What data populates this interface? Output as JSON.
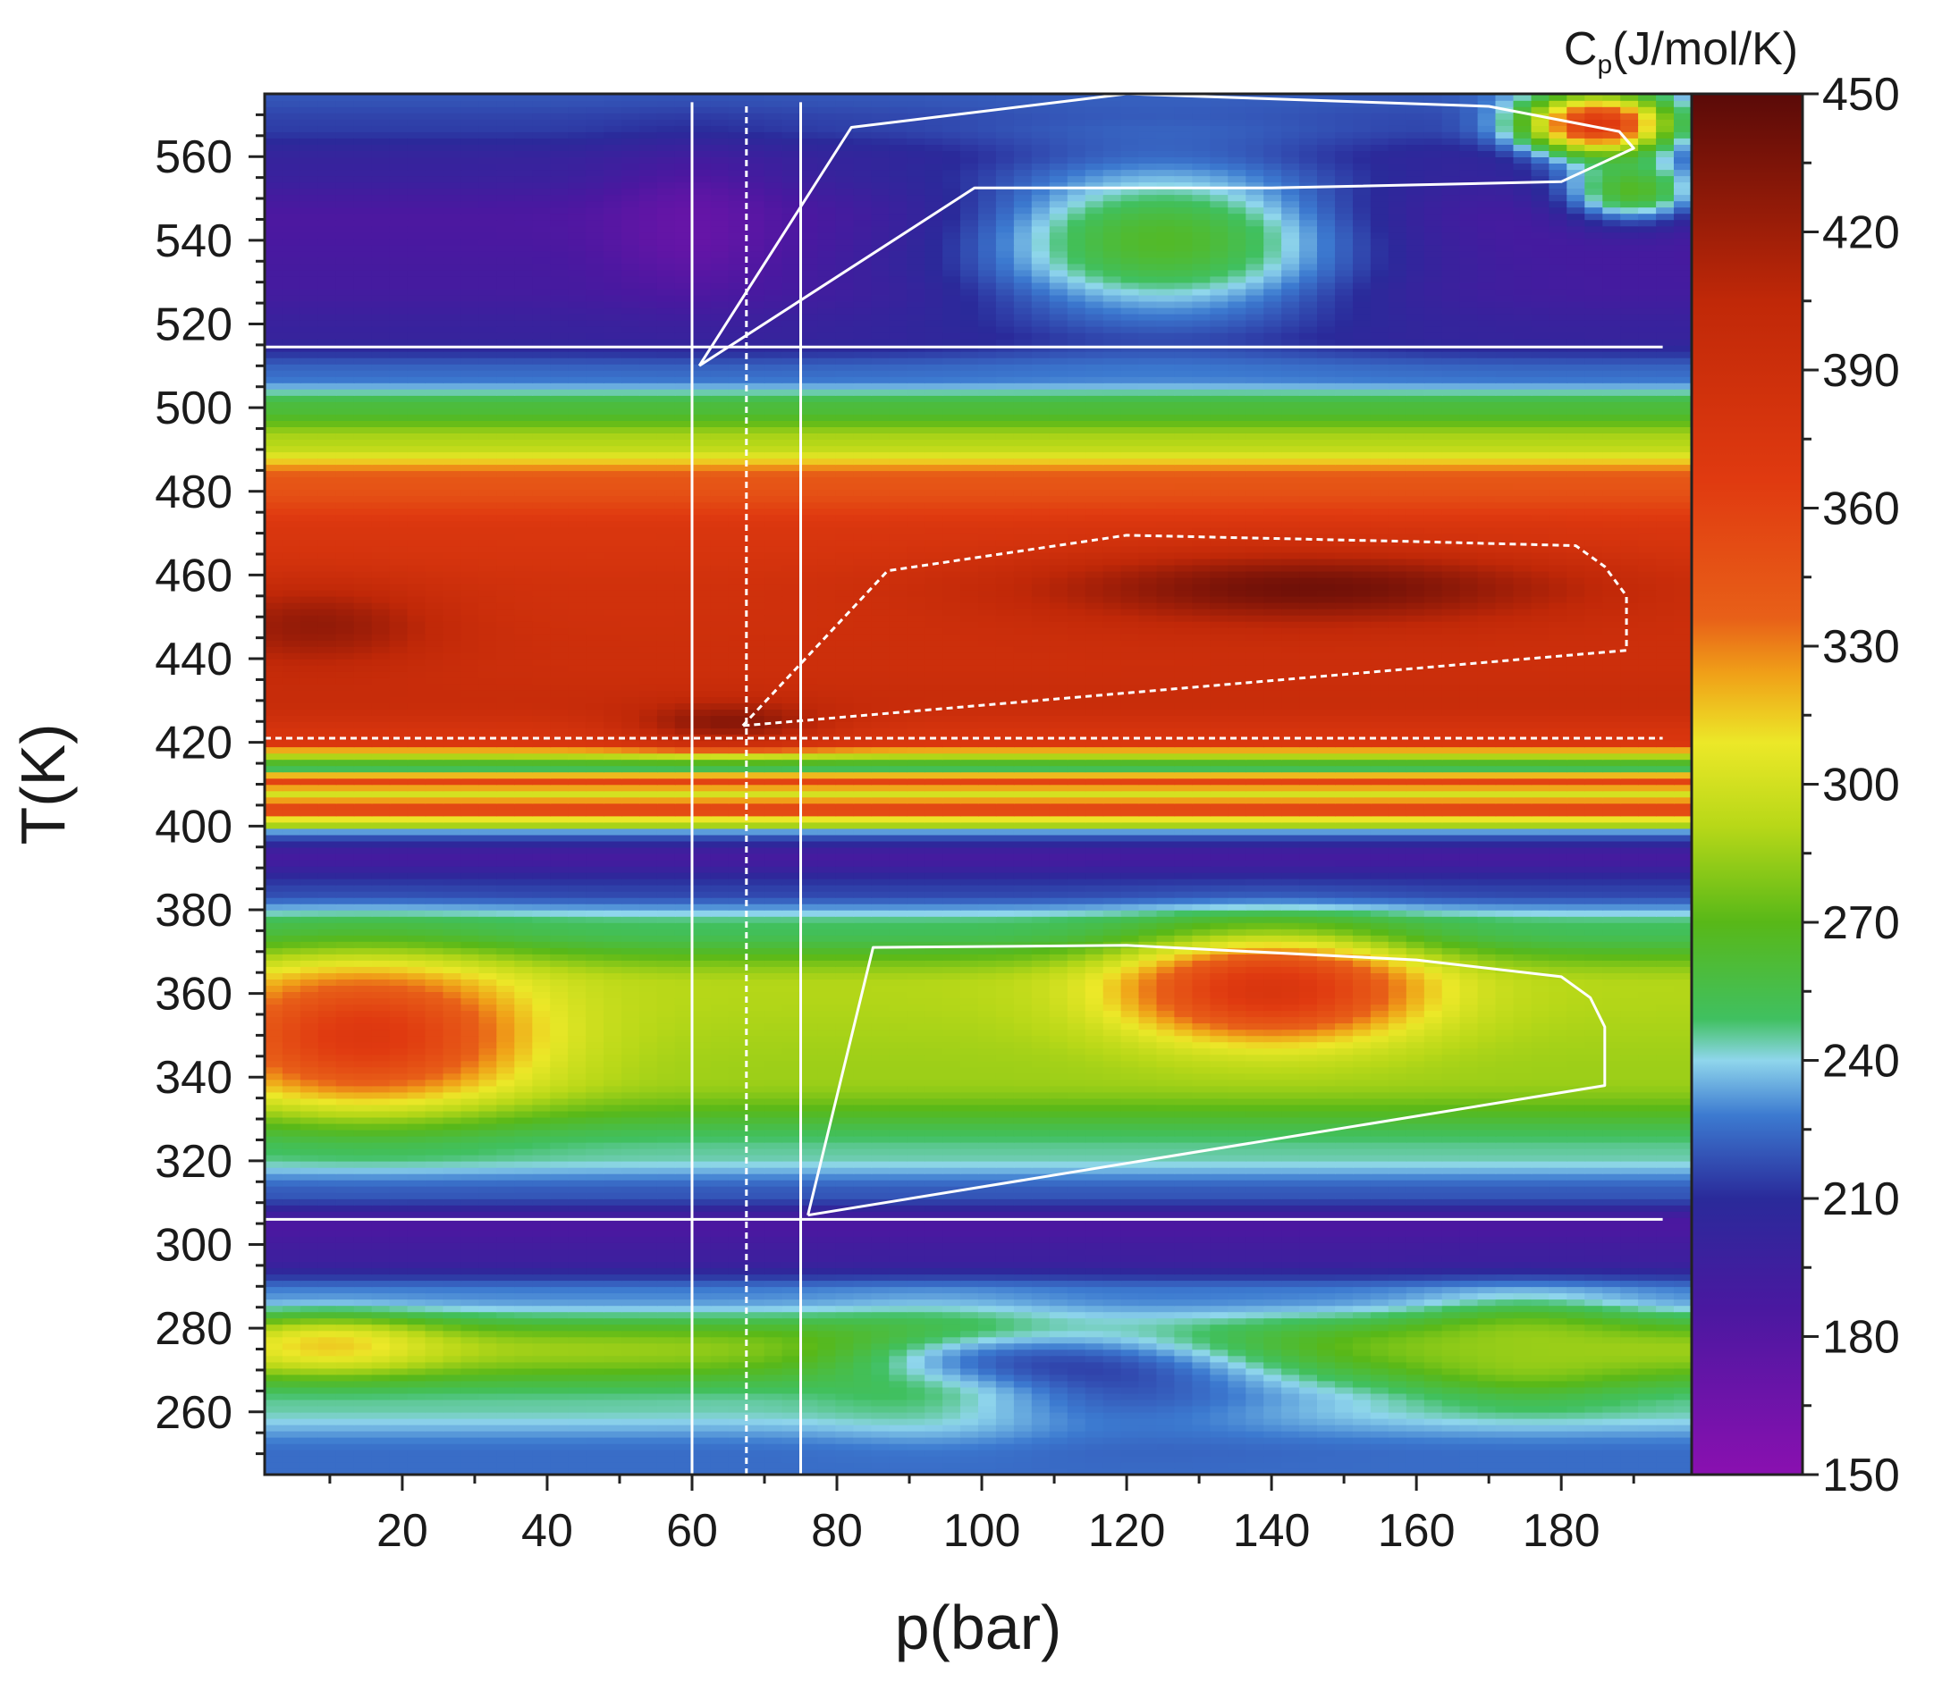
{
  "chart_data": {
    "type": "heatmap",
    "title": "",
    "xlabel": "p(bar)",
    "ylabel": "T(K)",
    "xlim": [
      1,
      198
    ],
    "ylim": [
      245,
      575
    ],
    "x_ticks": [
      20,
      40,
      60,
      80,
      100,
      120,
      140,
      160,
      180
    ],
    "x_tick_labels": [
      "20",
      "40",
      "60",
      "80",
      "100",
      "120",
      "140",
      "160",
      "180"
    ],
    "y_ticks": [
      260,
      280,
      300,
      320,
      340,
      360,
      380,
      400,
      420,
      440,
      460,
      480,
      500,
      520,
      540,
      560
    ],
    "y_tick_labels": [
      "260",
      "280",
      "300",
      "320",
      "340",
      "360",
      "380",
      "400",
      "420",
      "440",
      "460",
      "480",
      "500",
      "520",
      "540",
      "560"
    ],
    "colorbar": {
      "title_main": "C",
      "title_sub": "p",
      "title_rest": "(J/mol/K)",
      "range": [
        150,
        450
      ],
      "ticks": [
        150,
        180,
        210,
        240,
        270,
        300,
        330,
        360,
        390,
        420,
        450
      ],
      "tick_labels": [
        "150",
        "180",
        "210",
        "240",
        "270",
        "300",
        "330",
        "360",
        "390",
        "420",
        "450"
      ],
      "colormap": [
        [
          0.0,
          "#8a10b0"
        ],
        [
          0.12,
          "#4a18a0"
        ],
        [
          0.2,
          "#2a2a9a"
        ],
        [
          0.26,
          "#3c7ad0"
        ],
        [
          0.3,
          "#8fd6ec"
        ],
        [
          0.33,
          "#40c060"
        ],
        [
          0.4,
          "#58b818"
        ],
        [
          0.47,
          "#b8d818"
        ],
        [
          0.53,
          "#ece828"
        ],
        [
          0.58,
          "#f0a018"
        ],
        [
          0.62,
          "#e86018"
        ],
        [
          0.72,
          "#e03a10"
        ],
        [
          0.85,
          "#c02808"
        ],
        [
          1.0,
          "#5a0a08"
        ]
      ]
    },
    "field_bands": [
      {
        "T": 250,
        "Cp": 225
      },
      {
        "T": 262,
        "Cp": 245
      },
      {
        "T": 275,
        "Cp": 285
      },
      {
        "T": 288,
        "Cp": 230
      },
      {
        "T": 297,
        "Cp": 195
      },
      {
        "T": 305,
        "Cp": 185
      },
      {
        "T": 312,
        "Cp": 220
      },
      {
        "T": 322,
        "Cp": 245
      },
      {
        "T": 340,
        "Cp": 285
      },
      {
        "T": 362,
        "Cp": 290
      },
      {
        "T": 376,
        "Cp": 250
      },
      {
        "T": 385,
        "Cp": 215
      },
      {
        "T": 393,
        "Cp": 190
      },
      {
        "T": 398,
        "Cp": 220
      },
      {
        "T": 401,
        "Cp": 300
      },
      {
        "T": 404,
        "Cp": 360
      },
      {
        "T": 408,
        "Cp": 300
      },
      {
        "T": 411,
        "Cp": 360
      },
      {
        "T": 414,
        "Cp": 250
      },
      {
        "T": 417,
        "Cp": 290
      },
      {
        "T": 420,
        "Cp": 375
      },
      {
        "T": 430,
        "Cp": 395
      },
      {
        "T": 440,
        "Cp": 390
      },
      {
        "T": 455,
        "Cp": 385
      },
      {
        "T": 470,
        "Cp": 375
      },
      {
        "T": 482,
        "Cp": 345
      },
      {
        "T": 492,
        "Cp": 290
      },
      {
        "T": 500,
        "Cp": 260
      },
      {
        "T": 508,
        "Cp": 225
      },
      {
        "T": 518,
        "Cp": 200
      },
      {
        "T": 530,
        "Cp": 190
      },
      {
        "T": 545,
        "Cp": 185
      },
      {
        "T": 558,
        "Cp": 200
      },
      {
        "T": 568,
        "Cp": 215
      },
      {
        "T": 575,
        "Cp": 220
      }
    ],
    "field_features": [
      {
        "p": 145,
        "T": 457,
        "Cp": 440,
        "rp": 40,
        "rT": 9
      },
      {
        "p": 65,
        "T": 425,
        "Cp": 430,
        "rp": 14,
        "rT": 5
      },
      {
        "p": 8,
        "T": 448,
        "Cp": 425,
        "rp": 18,
        "rT": 10
      },
      {
        "p": 140,
        "T": 361,
        "Cp": 375,
        "rp": 20,
        "rT": 12
      },
      {
        "p": 15,
        "T": 350,
        "Cp": 370,
        "rp": 22,
        "rT": 16
      },
      {
        "p": 10,
        "T": 276,
        "Cp": 315,
        "rp": 15,
        "rT": 6
      },
      {
        "p": 125,
        "T": 540,
        "Cp": 265,
        "rp": 28,
        "rT": 20
      },
      {
        "p": 185,
        "T": 568,
        "Cp": 370,
        "rp": 10,
        "rT": 7
      },
      {
        "p": 190,
        "T": 552,
        "Cp": 265,
        "rp": 10,
        "rT": 8
      },
      {
        "p": 115,
        "T": 268,
        "Cp": 215,
        "rp": 30,
        "rT": 14
      },
      {
        "p": 95,
        "T": 270,
        "Cp": 270,
        "rp": 18,
        "rT": 12
      },
      {
        "p": 175,
        "T": 275,
        "Cp": 285,
        "rp": 15,
        "rT": 10
      },
      {
        "p": 60,
        "T": 543,
        "Cp": 170,
        "rp": 12,
        "rT": 15
      }
    ],
    "overlay_lines": [
      {
        "name": "vline-solid-1",
        "style": "solid",
        "points": [
          [
            60,
            245
          ],
          [
            60,
            573
          ]
        ]
      },
      {
        "name": "vline-dotted",
        "style": "dotted",
        "points": [
          [
            67.5,
            245
          ],
          [
            67.5,
            573
          ]
        ]
      },
      {
        "name": "vline-solid-2",
        "style": "solid",
        "points": [
          [
            75,
            245
          ],
          [
            75,
            573
          ]
        ]
      },
      {
        "name": "hline-514",
        "style": "solid",
        "points": [
          [
            1,
            514.5
          ],
          [
            194,
            514.5
          ]
        ]
      },
      {
        "name": "hline-421",
        "style": "dotted",
        "points": [
          [
            1,
            421
          ],
          [
            194,
            421
          ]
        ]
      },
      {
        "name": "hline-306",
        "style": "solid",
        "points": [
          [
            1,
            306
          ],
          [
            194,
            306
          ]
        ]
      },
      {
        "name": "region-upper",
        "style": "solid",
        "closed": true,
        "points": [
          [
            61,
            510
          ],
          [
            82,
            567
          ],
          [
            120,
            575
          ],
          [
            170,
            572
          ],
          [
            188,
            566
          ],
          [
            190,
            562
          ],
          [
            180,
            554
          ],
          [
            140,
            552.5
          ],
          [
            99,
            552.5
          ],
          [
            61,
            510
          ]
        ]
      },
      {
        "name": "region-middle",
        "style": "dotted",
        "closed": true,
        "points": [
          [
            67,
            424
          ],
          [
            87,
            461
          ],
          [
            120,
            469.5
          ],
          [
            160,
            468
          ],
          [
            182,
            467
          ],
          [
            186,
            462
          ],
          [
            189,
            455
          ],
          [
            189,
            442
          ],
          [
            67,
            424
          ]
        ]
      },
      {
        "name": "region-lower",
        "style": "solid",
        "closed": true,
        "points": [
          [
            76,
            307
          ],
          [
            85,
            371
          ],
          [
            120,
            371.5
          ],
          [
            160,
            368
          ],
          [
            180,
            364
          ],
          [
            184,
            359
          ],
          [
            186,
            352
          ],
          [
            186,
            338
          ],
          [
            76,
            307
          ]
        ]
      }
    ]
  }
}
